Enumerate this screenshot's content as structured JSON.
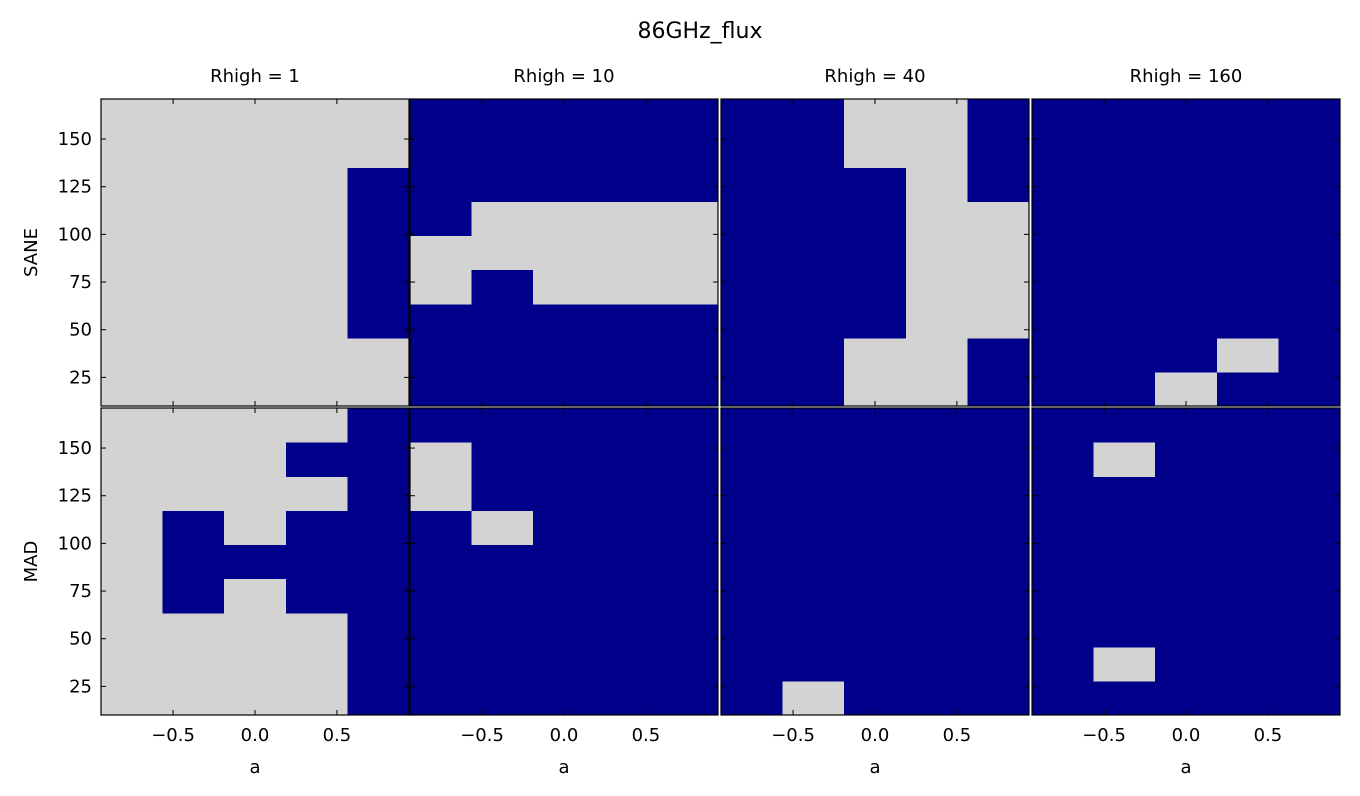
{
  "chart_data": {
    "type": "heatmap",
    "title": "86GHz_flux",
    "xlabel": "a",
    "row_labels": [
      "SANE",
      "MAD"
    ],
    "column_titles": [
      "Rhigh = 1",
      "Rhigh = 10",
      "Rhigh = 40",
      "Rhigh = 160"
    ],
    "x_centers": [
      -0.75,
      -0.375,
      0.0,
      0.375,
      0.75
    ],
    "xlim": [
      -0.94,
      0.94
    ],
    "x_ticks": [
      -0.5,
      0.0,
      0.5
    ],
    "x_tick_labels": [
      "−0.5",
      "0.0",
      "0.5"
    ],
    "y_centers": [
      19,
      37,
      55,
      72,
      90,
      108,
      126,
      144,
      162
    ],
    "ylim": [
      10,
      171
    ],
    "y_ticks": [
      25,
      50,
      75,
      100,
      125,
      150
    ],
    "y_tick_labels": [
      "25",
      "50",
      "75",
      "100",
      "125",
      "150"
    ],
    "colors": {
      "true": "#d3d3d3",
      "false": "#00008b"
    },
    "panels": [
      {
        "row": "SANE",
        "column": "Rhigh = 1",
        "values": [
          [
            1,
            1,
            1,
            1,
            1
          ],
          [
            1,
            1,
            1,
            1,
            1
          ],
          [
            1,
            1,
            1,
            1,
            0
          ],
          [
            1,
            1,
            1,
            1,
            0
          ],
          [
            1,
            1,
            1,
            1,
            0
          ],
          [
            1,
            1,
            1,
            1,
            0
          ],
          [
            1,
            1,
            1,
            1,
            0
          ],
          [
            1,
            1,
            1,
            1,
            1
          ],
          [
            1,
            1,
            1,
            1,
            1
          ]
        ]
      },
      {
        "row": "SANE",
        "column": "Rhigh = 10",
        "values": [
          [
            0,
            0,
            0,
            0,
            0
          ],
          [
            0,
            0,
            0,
            0,
            0
          ],
          [
            0,
            0,
            0,
            0,
            0
          ],
          [
            1,
            0,
            1,
            1,
            1
          ],
          [
            1,
            1,
            1,
            1,
            1
          ],
          [
            0,
            1,
            1,
            1,
            1
          ],
          [
            0,
            0,
            0,
            0,
            0
          ],
          [
            0,
            0,
            0,
            0,
            0
          ],
          [
            0,
            0,
            0,
            0,
            0
          ]
        ]
      },
      {
        "row": "SANE",
        "column": "Rhigh = 40",
        "values": [
          [
            0,
            0,
            1,
            1,
            0
          ],
          [
            0,
            0,
            1,
            1,
            0
          ],
          [
            0,
            0,
            0,
            1,
            1
          ],
          [
            0,
            0,
            0,
            1,
            1
          ],
          [
            0,
            0,
            0,
            1,
            1
          ],
          [
            0,
            0,
            0,
            1,
            1
          ],
          [
            0,
            0,
            0,
            1,
            0
          ],
          [
            0,
            0,
            1,
            1,
            0
          ],
          [
            0,
            0,
            1,
            1,
            0
          ]
        ]
      },
      {
        "row": "SANE",
        "column": "Rhigh = 160",
        "values": [
          [
            0,
            0,
            1,
            0,
            0
          ],
          [
            0,
            0,
            0,
            1,
            0
          ],
          [
            0,
            0,
            0,
            0,
            0
          ],
          [
            0,
            0,
            0,
            0,
            0
          ],
          [
            0,
            0,
            0,
            0,
            0
          ],
          [
            0,
            0,
            0,
            0,
            0
          ],
          [
            0,
            0,
            0,
            0,
            0
          ],
          [
            0,
            0,
            0,
            0,
            0
          ],
          [
            0,
            0,
            0,
            0,
            0
          ]
        ]
      },
      {
        "row": "MAD",
        "column": "Rhigh = 1",
        "values": [
          [
            1,
            1,
            1,
            1,
            0
          ],
          [
            1,
            1,
            1,
            1,
            0
          ],
          [
            1,
            1,
            1,
            1,
            0
          ],
          [
            1,
            0,
            1,
            0,
            0
          ],
          [
            1,
            0,
            0,
            0,
            0
          ],
          [
            1,
            0,
            1,
            0,
            0
          ],
          [
            1,
            1,
            1,
            1,
            0
          ],
          [
            1,
            1,
            1,
            0,
            0
          ],
          [
            1,
            1,
            1,
            1,
            0
          ]
        ]
      },
      {
        "row": "MAD",
        "column": "Rhigh = 10",
        "values": [
          [
            0,
            0,
            0,
            0,
            0
          ],
          [
            0,
            0,
            0,
            0,
            0
          ],
          [
            0,
            0,
            0,
            0,
            0
          ],
          [
            0,
            0,
            0,
            0,
            0
          ],
          [
            0,
            0,
            0,
            0,
            0
          ],
          [
            0,
            1,
            0,
            0,
            0
          ],
          [
            1,
            0,
            0,
            0,
            0
          ],
          [
            1,
            0,
            0,
            0,
            0
          ],
          [
            0,
            0,
            0,
            0,
            0
          ]
        ]
      },
      {
        "row": "MAD",
        "column": "Rhigh = 40",
        "values": [
          [
            0,
            1,
            0,
            0,
            0
          ],
          [
            0,
            0,
            0,
            0,
            0
          ],
          [
            0,
            0,
            0,
            0,
            0
          ],
          [
            0,
            0,
            0,
            0,
            0
          ],
          [
            0,
            0,
            0,
            0,
            0
          ],
          [
            0,
            0,
            0,
            0,
            0
          ],
          [
            0,
            0,
            0,
            0,
            0
          ],
          [
            0,
            0,
            0,
            0,
            0
          ],
          [
            0,
            0,
            0,
            0,
            0
          ]
        ]
      },
      {
        "row": "MAD",
        "column": "Rhigh = 160",
        "values": [
          [
            0,
            0,
            0,
            0,
            0
          ],
          [
            0,
            1,
            0,
            0,
            0
          ],
          [
            0,
            0,
            0,
            0,
            0
          ],
          [
            0,
            0,
            0,
            0,
            0
          ],
          [
            0,
            0,
            0,
            0,
            0
          ],
          [
            0,
            0,
            0,
            0,
            0
          ],
          [
            0,
            0,
            0,
            0,
            0
          ],
          [
            0,
            1,
            0,
            0,
            0
          ],
          [
            0,
            0,
            0,
            0,
            0
          ]
        ]
      }
    ]
  }
}
